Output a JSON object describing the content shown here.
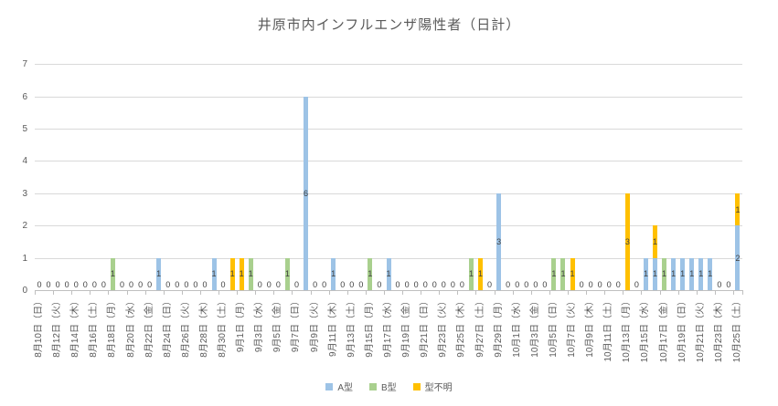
{
  "chart_data": {
    "type": "bar",
    "stacked": true,
    "title": "井原市内インフルエンザ陽性者（日計）",
    "legend_position": "bottom",
    "grid": true,
    "y_axis": {
      "min": 0,
      "max": 7,
      "tick_interval": 1,
      "tick_labels": [
        "0",
        "1",
        "2",
        "3",
        "4",
        "5",
        "6",
        "7"
      ]
    },
    "x_axis": {
      "label_every_n_days": 2,
      "first_label": "8月10日（日）",
      "last_label": "10月25日（土）"
    },
    "style": {
      "text_color": "#595959",
      "data_label_color": "#404040",
      "gridline_color": "#d9d9d9",
      "axis_line_color": "#bfbfbf",
      "background": "#ffffff"
    },
    "series": [
      {
        "name": "A型",
        "key": "a",
        "color": "#9dc3e6"
      },
      {
        "name": "B型",
        "key": "b",
        "color": "#a9d08e"
      },
      {
        "name": "型不明",
        "key": "u",
        "color": "#ffc000"
      }
    ],
    "categories": [
      {
        "date": "8月10日",
        "dow": "日",
        "a": 0,
        "b": 0,
        "u": 0
      },
      {
        "date": "8月11日",
        "dow": "月",
        "a": 0,
        "b": 0,
        "u": 0
      },
      {
        "date": "8月12日",
        "dow": "火",
        "a": 0,
        "b": 0,
        "u": 0
      },
      {
        "date": "8月13日",
        "dow": "水",
        "a": 0,
        "b": 0,
        "u": 0
      },
      {
        "date": "8月14日",
        "dow": "木",
        "a": 0,
        "b": 0,
        "u": 0
      },
      {
        "date": "8月15日",
        "dow": "金",
        "a": 0,
        "b": 0,
        "u": 0
      },
      {
        "date": "8月16日",
        "dow": "土",
        "a": 0,
        "b": 0,
        "u": 0
      },
      {
        "date": "8月17日",
        "dow": "日",
        "a": 0,
        "b": 0,
        "u": 0
      },
      {
        "date": "8月18日",
        "dow": "月",
        "a": 0,
        "b": 1,
        "u": 0
      },
      {
        "date": "8月19日",
        "dow": "火",
        "a": 0,
        "b": 0,
        "u": 0
      },
      {
        "date": "8月20日",
        "dow": "水",
        "a": 0,
        "b": 0,
        "u": 0
      },
      {
        "date": "8月21日",
        "dow": "木",
        "a": 0,
        "b": 0,
        "u": 0
      },
      {
        "date": "8月22日",
        "dow": "金",
        "a": 0,
        "b": 0,
        "u": 0
      },
      {
        "date": "8月23日",
        "dow": "土",
        "a": 1,
        "b": 0,
        "u": 0
      },
      {
        "date": "8月24日",
        "dow": "日",
        "a": 0,
        "b": 0,
        "u": 0
      },
      {
        "date": "8月25日",
        "dow": "月",
        "a": 0,
        "b": 0,
        "u": 0
      },
      {
        "date": "8月26日",
        "dow": "火",
        "a": 0,
        "b": 0,
        "u": 0
      },
      {
        "date": "8月27日",
        "dow": "水",
        "a": 0,
        "b": 0,
        "u": 0
      },
      {
        "date": "8月28日",
        "dow": "木",
        "a": 0,
        "b": 0,
        "u": 0
      },
      {
        "date": "8月29日",
        "dow": "金",
        "a": 1,
        "b": 0,
        "u": 0
      },
      {
        "date": "8月30日",
        "dow": "土",
        "a": 0,
        "b": 0,
        "u": 0
      },
      {
        "date": "8月31日",
        "dow": "日",
        "a": 0,
        "b": 0,
        "u": 1
      },
      {
        "date": "9月1日",
        "dow": "月",
        "a": 0,
        "b": 0,
        "u": 1
      },
      {
        "date": "9月2日",
        "dow": "火",
        "a": 0,
        "b": 1,
        "u": 0
      },
      {
        "date": "9月3日",
        "dow": "水",
        "a": 0,
        "b": 0,
        "u": 0
      },
      {
        "date": "9月4日",
        "dow": "木",
        "a": 0,
        "b": 0,
        "u": 0
      },
      {
        "date": "9月5日",
        "dow": "金",
        "a": 0,
        "b": 0,
        "u": 0
      },
      {
        "date": "9月6日",
        "dow": "土",
        "a": 0,
        "b": 1,
        "u": 0
      },
      {
        "date": "9月7日",
        "dow": "日",
        "a": 0,
        "b": 0,
        "u": 0
      },
      {
        "date": "9月8日",
        "dow": "月",
        "a": 6,
        "b": 0,
        "u": 0
      },
      {
        "date": "9月9日",
        "dow": "火",
        "a": 0,
        "b": 0,
        "u": 0
      },
      {
        "date": "9月10日",
        "dow": "水",
        "a": 0,
        "b": 0,
        "u": 0
      },
      {
        "date": "9月11日",
        "dow": "木",
        "a": 1,
        "b": 0,
        "u": 0
      },
      {
        "date": "9月12日",
        "dow": "金",
        "a": 0,
        "b": 0,
        "u": 0
      },
      {
        "date": "9月13日",
        "dow": "土",
        "a": 0,
        "b": 0,
        "u": 0
      },
      {
        "date": "9月14日",
        "dow": "日",
        "a": 0,
        "b": 0,
        "u": 0
      },
      {
        "date": "9月15日",
        "dow": "月",
        "a": 0,
        "b": 1,
        "u": 0
      },
      {
        "date": "9月16日",
        "dow": "火",
        "a": 0,
        "b": 0,
        "u": 0
      },
      {
        "date": "9月17日",
        "dow": "水",
        "a": 1,
        "b": 0,
        "u": 0
      },
      {
        "date": "9月18日",
        "dow": "木",
        "a": 0,
        "b": 0,
        "u": 0
      },
      {
        "date": "9月19日",
        "dow": "金",
        "a": 0,
        "b": 0,
        "u": 0
      },
      {
        "date": "9月20日",
        "dow": "土",
        "a": 0,
        "b": 0,
        "u": 0
      },
      {
        "date": "9月21日",
        "dow": "日",
        "a": 0,
        "b": 0,
        "u": 0
      },
      {
        "date": "9月22日",
        "dow": "月",
        "a": 0,
        "b": 0,
        "u": 0
      },
      {
        "date": "9月23日",
        "dow": "火",
        "a": 0,
        "b": 0,
        "u": 0
      },
      {
        "date": "9月24日",
        "dow": "水",
        "a": 0,
        "b": 0,
        "u": 0
      },
      {
        "date": "9月25日",
        "dow": "木",
        "a": 0,
        "b": 0,
        "u": 0
      },
      {
        "date": "9月26日",
        "dow": "金",
        "a": 0,
        "b": 1,
        "u": 0
      },
      {
        "date": "9月27日",
        "dow": "土",
        "a": 0,
        "b": 0,
        "u": 1
      },
      {
        "date": "9月28日",
        "dow": "日",
        "a": 0,
        "b": 0,
        "u": 0
      },
      {
        "date": "9月29日",
        "dow": "月",
        "a": 3,
        "b": 0,
        "u": 0
      },
      {
        "date": "9月30日",
        "dow": "火",
        "a": 0,
        "b": 0,
        "u": 0
      },
      {
        "date": "10月1日",
        "dow": "水",
        "a": 0,
        "b": 0,
        "u": 0
      },
      {
        "date": "10月2日",
        "dow": "木",
        "a": 0,
        "b": 0,
        "u": 0
      },
      {
        "date": "10月3日",
        "dow": "金",
        "a": 0,
        "b": 0,
        "u": 0
      },
      {
        "date": "10月4日",
        "dow": "土",
        "a": 0,
        "b": 0,
        "u": 0
      },
      {
        "date": "10月5日",
        "dow": "日",
        "a": 0,
        "b": 1,
        "u": 0
      },
      {
        "date": "10月6日",
        "dow": "月",
        "a": 0,
        "b": 1,
        "u": 0
      },
      {
        "date": "10月7日",
        "dow": "火",
        "a": 0,
        "b": 0,
        "u": 1
      },
      {
        "date": "10月8日",
        "dow": "水",
        "a": 0,
        "b": 0,
        "u": 0
      },
      {
        "date": "10月9日",
        "dow": "木",
        "a": 0,
        "b": 0,
        "u": 0
      },
      {
        "date": "10月10日",
        "dow": "金",
        "a": 0,
        "b": 0,
        "u": 0
      },
      {
        "date": "10月11日",
        "dow": "土",
        "a": 0,
        "b": 0,
        "u": 0
      },
      {
        "date": "10月12日",
        "dow": "日",
        "a": 0,
        "b": 0,
        "u": 0
      },
      {
        "date": "10月13日",
        "dow": "月",
        "a": 0,
        "b": 0,
        "u": 3
      },
      {
        "date": "10月14日",
        "dow": "火",
        "a": 0,
        "b": 0,
        "u": 0
      },
      {
        "date": "10月15日",
        "dow": "水",
        "a": 1,
        "b": 0,
        "u": 0
      },
      {
        "date": "10月16日",
        "dow": "木",
        "a": 1,
        "b": 0,
        "u": 1
      },
      {
        "date": "10月17日",
        "dow": "金",
        "a": 0,
        "b": 1,
        "u": 0
      },
      {
        "date": "10月18日",
        "dow": "土",
        "a": 1,
        "b": 0,
        "u": 0
      },
      {
        "date": "10月19日",
        "dow": "日",
        "a": 1,
        "b": 0,
        "u": 0
      },
      {
        "date": "10月20日",
        "dow": "月",
        "a": 1,
        "b": 0,
        "u": 0
      },
      {
        "date": "10月21日",
        "dow": "火",
        "a": 1,
        "b": 0,
        "u": 0
      },
      {
        "date": "10月22日",
        "dow": "水",
        "a": 1,
        "b": 0,
        "u": 0
      },
      {
        "date": "10月23日",
        "dow": "木",
        "a": 0,
        "b": 0,
        "u": 0
      },
      {
        "date": "10月24日",
        "dow": "金",
        "a": 0,
        "b": 0,
        "u": 0
      },
      {
        "date": "10月25日",
        "dow": "土",
        "a": 2,
        "b": 0,
        "u": 1
      }
    ]
  }
}
